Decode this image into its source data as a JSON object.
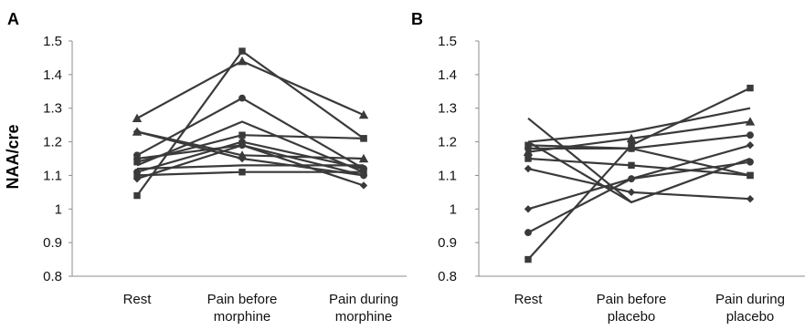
{
  "chart_data": [
    {
      "type": "line",
      "panel_label": "A",
      "ylabel": "NAA/cre",
      "categories": [
        [
          "Rest"
        ],
        [
          "Pain before",
          "morphine"
        ],
        [
          "Pain during",
          "morphine"
        ]
      ],
      "ylim": [
        0.8,
        1.5
      ],
      "yticks": [
        "0.8",
        "0.9",
        "1",
        "1.1",
        "1.2",
        "1.3",
        "1.4",
        "1.5"
      ],
      "grid": false,
      "series": [
        {
          "marker": "triangle",
          "values": [
            1.27,
            1.44,
            1.28
          ]
        },
        {
          "marker": "square",
          "values": [
            1.04,
            1.47,
            1.21
          ]
        },
        {
          "marker": "diamond",
          "values": [
            1.23,
            1.15,
            1.1
          ]
        },
        {
          "marker": "circle",
          "values": [
            1.16,
            1.33,
            1.12
          ]
        },
        {
          "marker": "none",
          "values": [
            1.13,
            1.26,
            1.11
          ]
        },
        {
          "marker": "square",
          "values": [
            1.14,
            1.22,
            1.21
          ]
        },
        {
          "marker": "circle",
          "values": [
            1.15,
            1.19,
            1.1
          ]
        },
        {
          "marker": "diamond",
          "values": [
            1.09,
            1.19,
            1.07
          ]
        },
        {
          "marker": "square",
          "values": [
            1.1,
            1.11,
            1.11
          ]
        },
        {
          "marker": "circle",
          "values": [
            1.11,
            1.2,
            1.12
          ]
        },
        {
          "marker": "none",
          "values": [
            1.12,
            1.13,
            1.13
          ]
        },
        {
          "marker": "triangle",
          "values": [
            1.23,
            1.16,
            1.15
          ]
        }
      ]
    },
    {
      "type": "line",
      "panel_label": "B",
      "categories": [
        [
          "Rest"
        ],
        [
          "Pain before",
          "placebo"
        ],
        [
          "Pain during",
          "placebo"
        ]
      ],
      "ylim": [
        0.8,
        1.5
      ],
      "yticks": [
        "0.8",
        "0.9",
        "1",
        "1.1",
        "1.2",
        "1.3",
        "1.4",
        "1.5"
      ],
      "grid": false,
      "series": [
        {
          "marker": "square",
          "values": [
            0.85,
            1.19,
            1.36
          ]
        },
        {
          "marker": "circle",
          "values": [
            0.93,
            1.09,
            1.14
          ]
        },
        {
          "marker": "diamond",
          "values": [
            1.0,
            1.09,
            1.19
          ]
        },
        {
          "marker": "none",
          "values": [
            1.27,
            1.02,
            1.15
          ]
        },
        {
          "marker": "triangle",
          "values": [
            1.17,
            1.21,
            1.26
          ]
        },
        {
          "marker": "square",
          "values": [
            1.15,
            1.13,
            1.1
          ]
        },
        {
          "marker": "diamond",
          "values": [
            1.12,
            1.05,
            1.03
          ]
        },
        {
          "marker": "none",
          "values": [
            1.2,
            1.23,
            1.3
          ]
        },
        {
          "marker": "circle",
          "values": [
            1.18,
            1.18,
            1.22
          ]
        },
        {
          "marker": "square",
          "values": [
            1.19,
            1.18,
            1.1
          ]
        },
        {
          "marker": "none",
          "values": [
            1.2,
            1.02,
            1.15
          ]
        }
      ]
    }
  ]
}
